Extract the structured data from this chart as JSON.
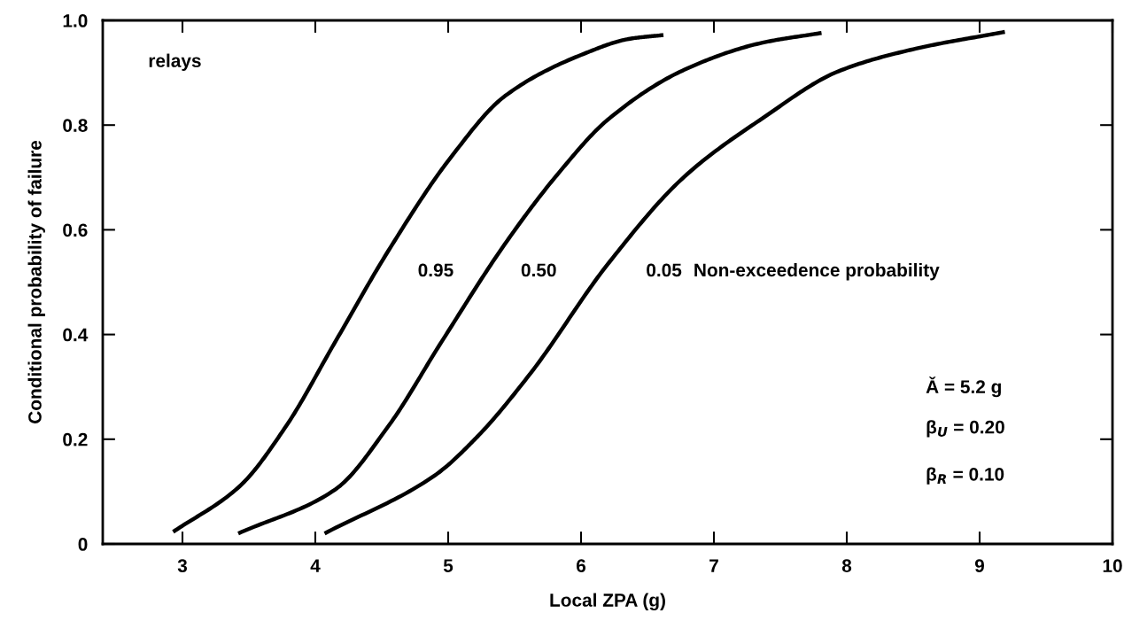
{
  "chart_data": {
    "type": "line",
    "xlabel": "Local ZPA (g)",
    "ylabel": "Conditional probability of failure",
    "xlim": [
      2.4,
      10
    ],
    "xticks": [
      3,
      4,
      5,
      6,
      7,
      8,
      9,
      10
    ],
    "ylim": [
      0,
      1
    ],
    "yticks": [
      0,
      0.2,
      0.4,
      0.6,
      0.8,
      {
        "value": 1,
        "label": "1.0"
      }
    ],
    "grid": false,
    "legend": false,
    "marker": "none",
    "line_style": "solid",
    "series": [
      {
        "color": "#000000",
        "x": [
          2.93,
          3.43,
          3.78,
          4.15,
          4.55,
          5.01,
          5.43,
          6.02,
          6.37,
          6.62
        ],
        "values": [
          0.023,
          0.11,
          0.225,
          0.386,
          0.56,
          0.735,
          0.856,
          0.936,
          0.965,
          0.972
        ]
      },
      {
        "color": "#000000",
        "x": [
          3.42,
          4.15,
          4.55,
          4.95,
          5.43,
          5.83,
          6.2,
          6.78,
          7.36,
          7.81
        ],
        "values": [
          0.02,
          0.104,
          0.225,
          0.386,
          0.574,
          0.708,
          0.81,
          0.906,
          0.957,
          0.976
        ]
      },
      {
        "color": "#000000",
        "x": [
          4.07,
          4.9,
          5.22,
          5.62,
          6.2,
          6.78,
          7.36,
          7.94,
          8.52,
          9.19
        ],
        "values": [
          0.02,
          0.131,
          0.205,
          0.326,
          0.534,
          0.702,
          0.812,
          0.903,
          0.946,
          0.978
        ]
      }
    ],
    "annotations": [
      "0.95",
      "0.50",
      "0.05",
      "Non-exceedence probability",
      "relays",
      "Ǎ = 5.2 g",
      "β$_{U}$ = 0.20",
      "β$_{R}$ = 0.10"
    ]
  }
}
